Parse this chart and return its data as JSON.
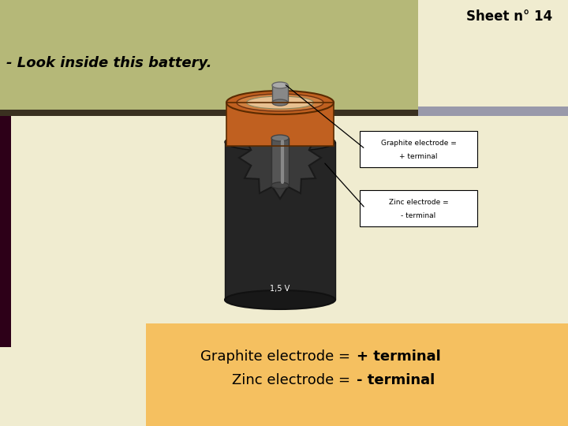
{
  "title": "Sheet n° 14",
  "subtitle": "- Look inside this battery.",
  "bg_color": "#f0ecd0",
  "header_box_color": "#b5b878",
  "header_box2_color": "#9999aa",
  "bottom_box_color": "#f5c060",
  "battery_label": "1,5 V",
  "dark_purple": "#2d0018",
  "brown_outer": "#c06020",
  "brown_inner": "#d08040",
  "brown_center": "#e8c090",
  "black_body": "#252525",
  "black_dark": "#181818",
  "zinc_color": "#383838",
  "zinc_light": "#505050",
  "rod_color": "#888888",
  "rod_top": "#aaaaaa",
  "label1_line1": "Graphite electrode =",
  "label1_line2": "+ terminal",
  "label2_line1": "Zinc electrode =",
  "label2_line2": "- terminal",
  "bottom_line1_normal": "Graphite electrode = ",
  "bottom_line1_bold": "+ terminal",
  "bottom_line2_normal": "Zinc electrode = ",
  "bottom_line2_bold": "- terminal"
}
